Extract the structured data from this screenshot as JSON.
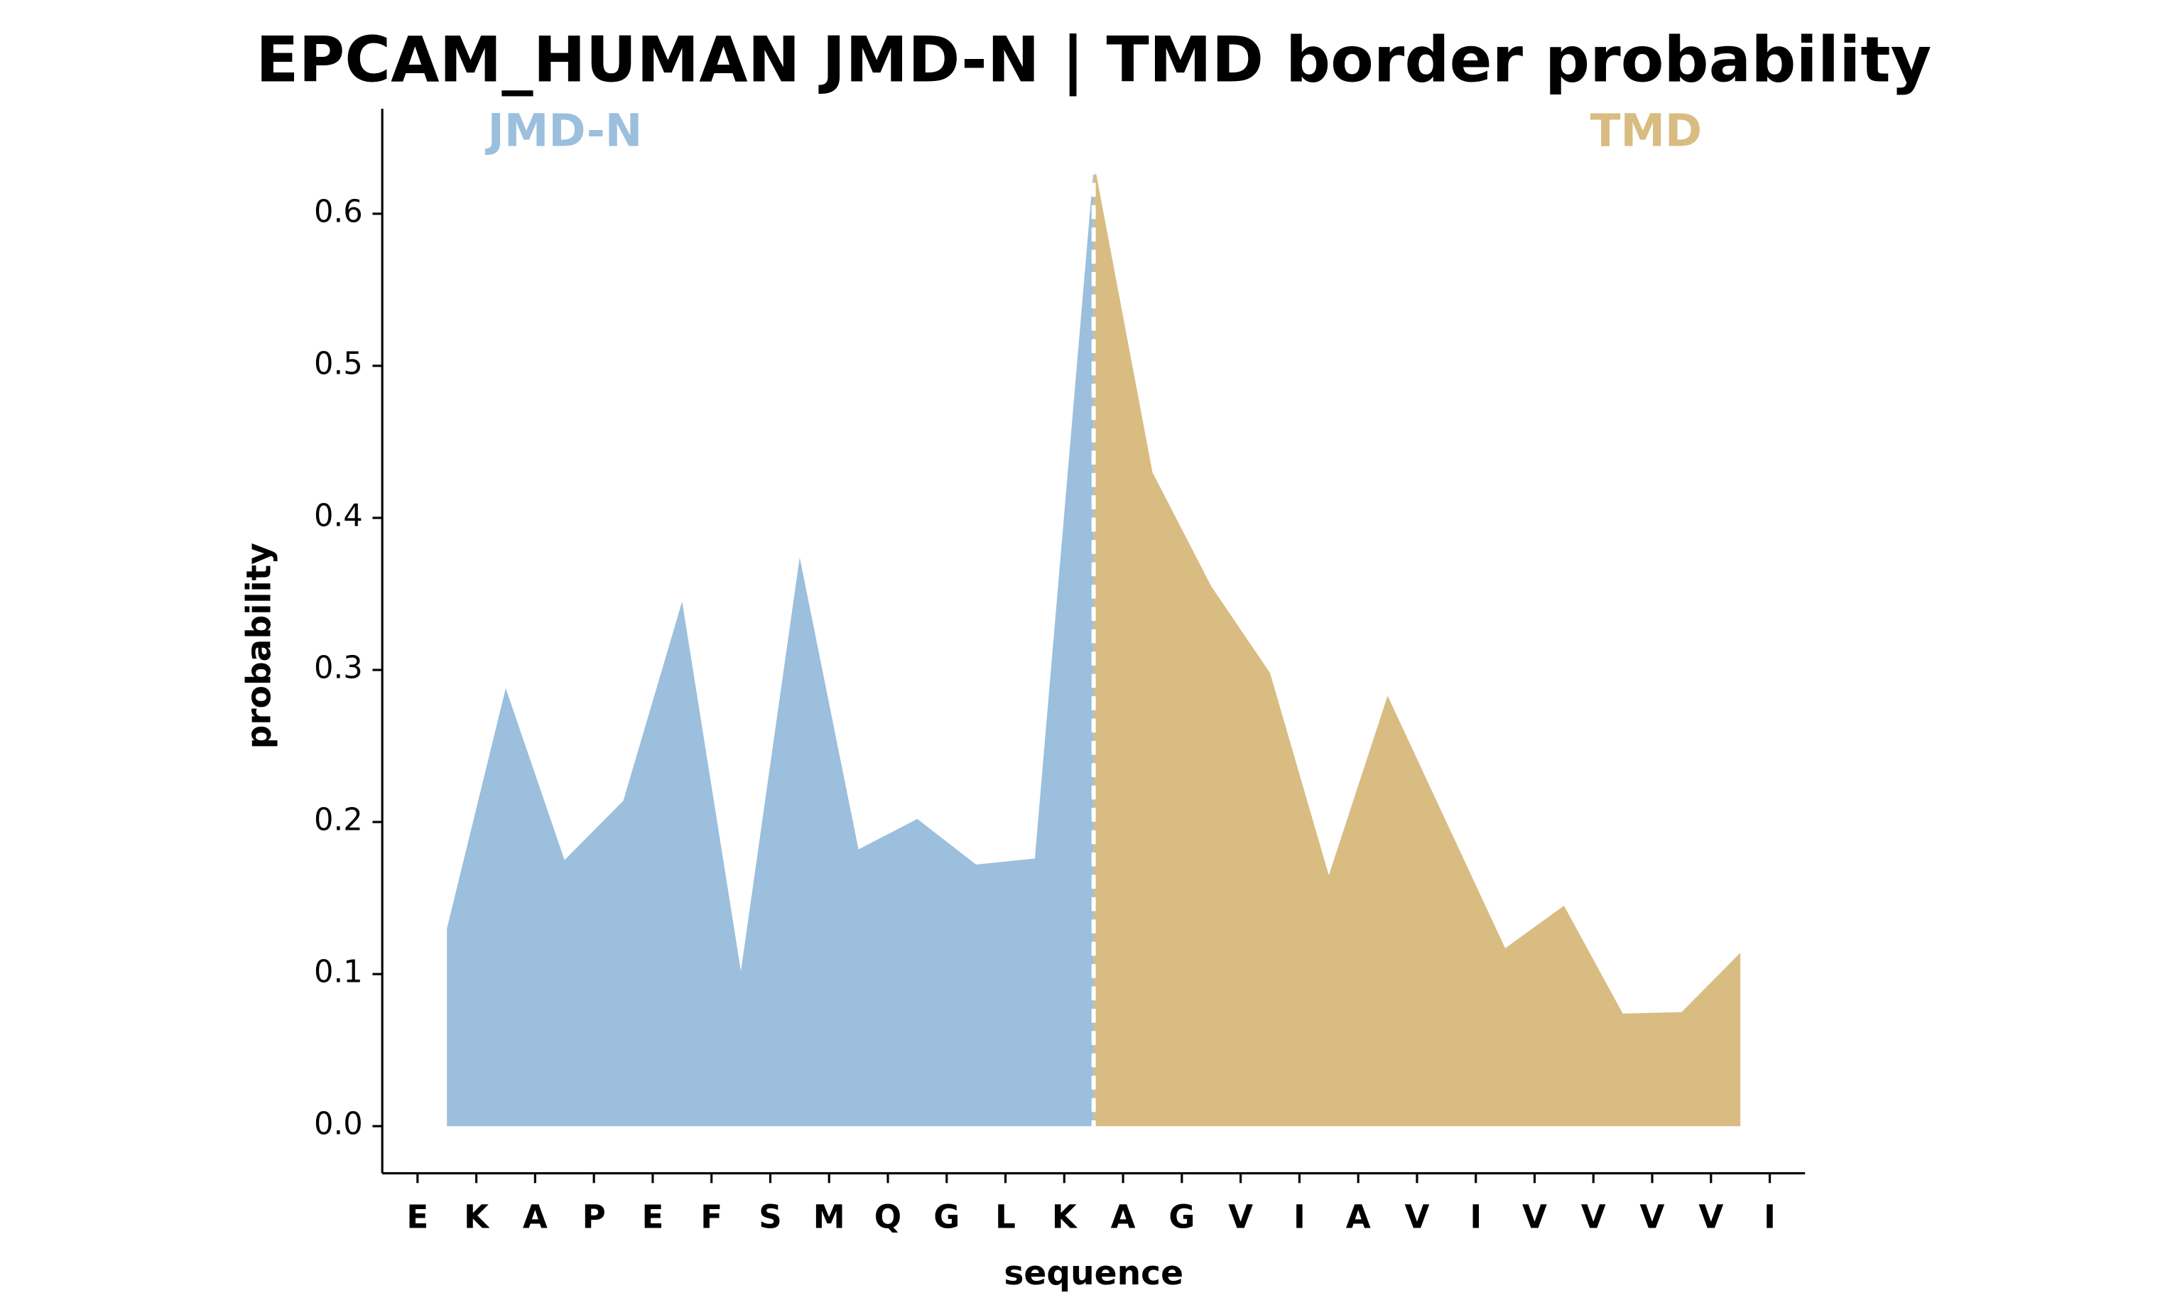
{
  "chart_data": {
    "type": "area",
    "title": "EPCAM_HUMAN JMD-N | TMD border probability",
    "xlabel": "sequence",
    "ylabel": "probability",
    "series": [
      {
        "name": "JMD-N",
        "color": "#9bbfdd",
        "x": [
          0.5,
          1.5,
          2.5,
          3.5,
          4.5,
          5.5,
          6.5,
          7.5,
          8.5,
          9.5,
          10.5,
          11.5
        ],
        "values": [
          0.13,
          0.288,
          0.175,
          0.214,
          0.345,
          0.102,
          0.374,
          0.182,
          0.202,
          0.172,
          0.176,
          0.63
        ]
      },
      {
        "name": "TMD",
        "color": "#d9bc82",
        "x": [
          11.5,
          12.5,
          13.5,
          14.5,
          15.5,
          16.5,
          17.5,
          18.5,
          19.5,
          20.5,
          21.5,
          22.5
        ],
        "values": [
          0.635,
          0.43,
          0.355,
          0.298,
          0.165,
          0.283,
          0.2,
          0.117,
          0.145,
          0.074,
          0.075,
          0.114
        ]
      }
    ],
    "xlim": [
      -0.6,
      23.6
    ],
    "xticks": [
      {
        "value": 0,
        "label": "E"
      },
      {
        "value": 1,
        "label": "K"
      },
      {
        "value": 2,
        "label": "A"
      },
      {
        "value": 3,
        "label": "P"
      },
      {
        "value": 4,
        "label": "E"
      },
      {
        "value": 5,
        "label": "F"
      },
      {
        "value": 6,
        "label": "S"
      },
      {
        "value": 7,
        "label": "M"
      },
      {
        "value": 8,
        "label": "Q"
      },
      {
        "value": 9,
        "label": "G"
      },
      {
        "value": 10,
        "label": "L"
      },
      {
        "value": 11,
        "label": "K"
      },
      {
        "value": 12,
        "label": "A"
      },
      {
        "value": 13,
        "label": "G"
      },
      {
        "value": 14,
        "label": "V"
      },
      {
        "value": 15,
        "label": "I"
      },
      {
        "value": 16,
        "label": "A"
      },
      {
        "value": 17,
        "label": "V"
      },
      {
        "value": 18,
        "label": "I"
      },
      {
        "value": 19,
        "label": "V"
      },
      {
        "value": 20,
        "label": "V"
      },
      {
        "value": 21,
        "label": "V"
      },
      {
        "value": 22,
        "label": "V"
      },
      {
        "value": 23,
        "label": "I"
      }
    ],
    "ylim": [
      -0.031,
      0.669
    ],
    "yticks": [
      {
        "value": 0,
        "label": "0.0"
      },
      0.1,
      0.2,
      0.3,
      0.4,
      0.5,
      0.6
    ]
  }
}
